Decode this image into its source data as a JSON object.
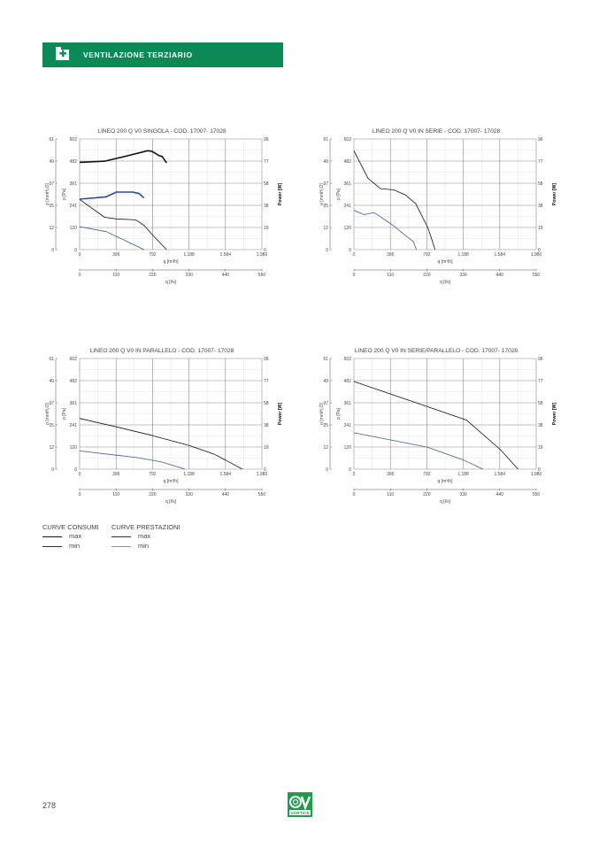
{
  "header": {
    "title": "VENTILAZIONE TERZIARIO",
    "icon": "first-aid-kit-icon",
    "color": "#0c8a56"
  },
  "chart_data": [
    {
      "type": "line",
      "title": "LINEO 200 Q V0 SINGOLA - COD. 17007- 17028",
      "xlabel": "q [m³/h]",
      "x2label": "q [l/s]",
      "ylabel": "p [Pa]",
      "y2label": "p [mmH₂O]",
      "ylabel_right": "Power [W]",
      "xlim": [
        0,
        1980
      ],
      "ylim": [
        0,
        602
      ],
      "powerlim": [
        0,
        96
      ],
      "xticks": [
        "0",
        "396",
        "792",
        "1.188",
        "1.584",
        "1.980"
      ],
      "x2ticks": [
        "0",
        "110",
        "220",
        "330",
        "440",
        "550"
      ],
      "yticks": [
        "0",
        "120",
        "241",
        "361",
        "482",
        "602"
      ],
      "y2ticks": [
        "0",
        "12",
        "25",
        "37",
        "49",
        "61"
      ],
      "powerticks": [
        "0",
        "19",
        "38",
        "58",
        "77",
        "96"
      ],
      "grid": true,
      "series": [
        {
          "name": "prestazioni max",
          "kind": "performance",
          "color": "#111111",
          "points": [
            [
              0,
              273
            ],
            [
              272,
              176
            ],
            [
              400,
              167
            ],
            [
              609,
              162
            ],
            [
              705,
              130
            ],
            [
              800,
              75
            ],
            [
              945,
              0
            ]
          ]
        },
        {
          "name": "prestazioni min",
          "kind": "performance",
          "color": "#3a5a9a",
          "points": [
            [
              0,
              125
            ],
            [
              288,
              98
            ],
            [
              500,
              48
            ],
            [
              699,
              0
            ]
          ]
        },
        {
          "name": "consumi max",
          "kind": "power",
          "color": "#111111",
          "points": [
            [
              0,
              75.7
            ],
            [
              272,
              76.7
            ],
            [
              500,
              81
            ],
            [
              737,
              85.8
            ],
            [
              785,
              85.3
            ],
            [
              865,
              81.5
            ],
            [
              897,
              80.8
            ],
            [
              945,
              75.2
            ]
          ]
        },
        {
          "name": "consumi min",
          "kind": "power",
          "color": "#2a4a95",
          "points": [
            [
              0,
              43.8
            ],
            [
              288,
              45.8
            ],
            [
              400,
              49.9
            ],
            [
              577,
              49.9
            ],
            [
              647,
              48.6
            ],
            [
              699,
              44.8
            ]
          ]
        }
      ]
    },
    {
      "type": "line",
      "title": "LINEO 200 Q V0 IN SERIE -  COD. 17007- 17028",
      "xlabel": "q [m³/h]",
      "x2label": "q [l/s]",
      "ylabel": "p [Pa]",
      "y2label": "p [mmH₂O]",
      "ylabel_right": "Power [W]",
      "xlim": [
        0,
        1980
      ],
      "ylim": [
        0,
        602
      ],
      "powerlim": [
        0,
        96
      ],
      "xticks": [
        "0",
        "396",
        "792",
        "1.188",
        "1.584",
        "1.980"
      ],
      "x2ticks": [
        "0",
        "110",
        "220",
        "330",
        "440",
        "550"
      ],
      "yticks": [
        "0",
        "120",
        "241",
        "361",
        "482",
        "602"
      ],
      "y2ticks": [
        "0",
        "12",
        "25",
        "37",
        "49",
        "61"
      ],
      "powerticks": [
        "0",
        "19",
        "38",
        "58",
        "77",
        "96"
      ],
      "grid": true,
      "series": [
        {
          "name": "prestazioni max",
          "kind": "performance",
          "color": "#111111",
          "points": [
            [
              0,
              538
            ],
            [
              154,
              387
            ],
            [
              288,
              332
            ],
            [
              433,
              325
            ],
            [
              561,
              297
            ],
            [
              673,
              249
            ],
            [
              801,
              122
            ],
            [
              833,
              75
            ],
            [
              881,
              0
            ]
          ]
        },
        {
          "name": "prestazioni min",
          "kind": "performance",
          "color": "#3a5a9a",
          "points": [
            [
              0,
              214
            ],
            [
              112,
              190
            ],
            [
              218,
              202
            ],
            [
              417,
              135
            ],
            [
              545,
              83
            ],
            [
              647,
              43
            ],
            [
              679,
              0
            ]
          ]
        }
      ]
    },
    {
      "type": "line",
      "title": "LINEO 200 Q V0 IN PARALLELO -  COD. 17007- 17028",
      "xlabel": "q [m³/h]",
      "x2label": "q [l/s]",
      "ylabel": "p [Pa]",
      "y2label": "p [mmH₂O]",
      "ylabel_right": "Power [W]",
      "xlim": [
        0,
        1980
      ],
      "ylim": [
        0,
        602
      ],
      "powerlim": [
        0,
        96
      ],
      "xticks": [
        "0",
        "396",
        "792",
        "1.188",
        "1.584",
        "1.980"
      ],
      "x2ticks": [
        "0",
        "110",
        "220",
        "330",
        "440",
        "550"
      ],
      "yticks": [
        "0",
        "120",
        "241",
        "361",
        "482",
        "602"
      ],
      "y2ticks": [
        "0",
        "12",
        "25",
        "37",
        "49",
        "61"
      ],
      "powerticks": [
        "0",
        "19",
        "38",
        "58",
        "77",
        "96"
      ],
      "grid": true,
      "series": [
        {
          "name": "prestazioni max",
          "kind": "performance",
          "color": "#111111",
          "points": [
            [
              0,
              276
            ],
            [
              398,
              230
            ],
            [
              796,
              182
            ],
            [
              1194,
              128
            ],
            [
              1465,
              81
            ],
            [
              1592,
              47
            ],
            [
              1768,
              0
            ]
          ]
        },
        {
          "name": "prestazioni min",
          "kind": "performance",
          "color": "#3a5a9a",
          "points": [
            [
              0,
              99
            ],
            [
              398,
              76
            ],
            [
              621,
              63
            ],
            [
              892,
              39
            ],
            [
              1146,
              0
            ]
          ]
        }
      ]
    },
    {
      "type": "line",
      "title": "LINEO 200 Q V0 IN SERIE/PARALLELO -  COD. 17007- 17028",
      "xlabel": "q [m³/h]",
      "x2label": "q [l/s]",
      "ylabel": "p [Pa]",
      "y2label": "p [mmH₂O]",
      "ylabel_right": "Power [W]",
      "xlim": [
        0,
        1980
      ],
      "ylim": [
        0,
        602
      ],
      "powerlim": [
        0,
        96
      ],
      "xticks": [
        "0",
        "396",
        "792",
        "1.188",
        "1.584",
        "1.980"
      ],
      "x2ticks": [
        "0",
        "110",
        "220",
        "330",
        "440",
        "550"
      ],
      "yticks": [
        "0",
        "120",
        "241",
        "361",
        "482",
        "602"
      ],
      "y2ticks": [
        "0",
        "12",
        "25",
        "37",
        "49",
        "61"
      ],
      "powerticks": [
        "0",
        "19",
        "38",
        "58",
        "77",
        "96"
      ],
      "grid": true,
      "series": [
        {
          "name": "prestazioni max",
          "kind": "performance",
          "color": "#111111",
          "points": [
            [
              0,
              477
            ],
            [
              398,
              409
            ],
            [
              796,
              341
            ],
            [
              1226,
              266
            ],
            [
              1592,
              106
            ],
            [
              1783,
              0
            ]
          ]
        },
        {
          "name": "prestazioni min",
          "kind": "performance",
          "color": "#3a5a9a",
          "points": [
            [
              0,
              198
            ],
            [
              796,
              120
            ],
            [
              1194,
              49
            ],
            [
              1401,
              0
            ]
          ]
        }
      ]
    }
  ],
  "legend": {
    "consumi": {
      "title": "CURVE CONSUMI",
      "max": "max",
      "min": "min",
      "max_color": "#111111",
      "min_color": "#2a2a80"
    },
    "prestazioni": {
      "title": "CURVE PRESTAZIONI",
      "max": "max",
      "min": "min",
      "max_color": "#333333",
      "min_color": "#8a8ac0"
    }
  },
  "footer": {
    "page_number": "278",
    "logo_text": "VORTICE"
  }
}
